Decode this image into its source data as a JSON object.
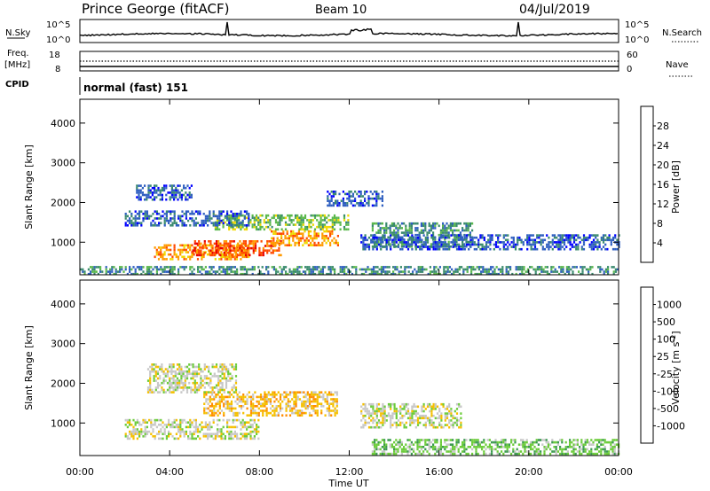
{
  "header": {
    "station": "Prince George (fitACF)",
    "beam": "Beam 10",
    "date": "04/Jul/2019"
  },
  "nsky_panel": {
    "left_label": "N.Sky",
    "right_label": "N.Search",
    "left_ticks": [
      "10^5",
      "10^0"
    ],
    "right_ticks": [
      "10^5",
      "10^0"
    ]
  },
  "freq_panel": {
    "left_label": "Freq.",
    "left_unit": "[MHz]",
    "right_label": "Nave",
    "left_ticks": [
      "18",
      "8"
    ],
    "right_ticks": [
      "60",
      "0"
    ]
  },
  "cpid": {
    "label": "CPID",
    "value": "normal (fast) 151"
  },
  "axes": {
    "ylabel": "Slant Range [km]",
    "xlabel": "Time UT",
    "y_ticks": [
      "1000",
      "2000",
      "3000",
      "4000"
    ],
    "x_ticks": [
      "00:00",
      "04:00",
      "08:00",
      "12:00",
      "16:00",
      "20:00",
      "00:00"
    ]
  },
  "chart_data": [
    {
      "type": "heatmap",
      "title": "",
      "xlabel": "",
      "ylabel": "Slant Range [km]",
      "xlim": [
        0,
        24
      ],
      "ylim": [
        180,
        4600
      ],
      "x_units": "hours UT",
      "colorbar": {
        "label": "Power [dB]",
        "ticks": [
          "4",
          "8",
          "12",
          "16",
          "20",
          "24",
          "28"
        ],
        "colors": [
          "#0000ff",
          "#2f5fc0",
          "#3a8a6e",
          "#5bb84c",
          "#f0d800",
          "#ff9a00",
          "#ff4a00",
          "#e80000"
        ]
      },
      "regions": [
        {
          "t": [
            3.3,
            7.5
          ],
          "r": [
            600,
            950
          ],
          "level": 5
        },
        {
          "t": [
            5.0,
            9.0
          ],
          "r": [
            700,
            1050
          ],
          "level": 6
        },
        {
          "t": [
            8.5,
            11.5
          ],
          "r": [
            900,
            1300
          ],
          "level": 5
        },
        {
          "t": [
            6.0,
            12.0
          ],
          "r": [
            1300,
            1700
          ],
          "level": 3
        },
        {
          "t": [
            2.0,
            7.5
          ],
          "r": [
            1400,
            1800
          ],
          "level": 1
        },
        {
          "t": [
            2.5,
            5.0
          ],
          "r": [
            2100,
            2450
          ],
          "level": 1
        },
        {
          "t": [
            11.0,
            13.5
          ],
          "r": [
            1950,
            2300
          ],
          "level": 1
        },
        {
          "t": [
            13.0,
            17.5
          ],
          "r": [
            900,
            1500
          ],
          "level": 2
        },
        {
          "t": [
            12.5,
            24.0
          ],
          "r": [
            800,
            1200
          ],
          "level": 1
        },
        {
          "t": [
            0.0,
            24.0
          ],
          "r": [
            180,
            400
          ],
          "level": 2
        }
      ]
    },
    {
      "type": "heatmap",
      "title": "",
      "xlabel": "Time UT",
      "ylabel": "Slant Range [km]",
      "xlim": [
        0,
        24
      ],
      "ylim": [
        180,
        4600
      ],
      "x_units": "hours UT",
      "colorbar": {
        "label": "Velocity [m s-1]",
        "label_parts": [
          "Velocity [m s",
          "-1",
          "]"
        ],
        "ticks": [
          "1000",
          "500",
          "100",
          "25",
          "-25",
          "-100",
          "-500",
          "-1000"
        ],
        "colors": [
          "#1a2fbf",
          "#2a5fb8",
          "#3c9a50",
          "#6ccc3a",
          "#c8c8c8",
          "#f5c000",
          "#ff8c00",
          "#ff3a00",
          "#e00000"
        ]
      },
      "regions": [
        {
          "t": [
            5.5,
            11.5
          ],
          "r": [
            1200,
            1800
          ],
          "level": "-100"
        },
        {
          "t": [
            2.0,
            8.0
          ],
          "r": [
            600,
            1100
          ],
          "level": "-25"
        },
        {
          "t": [
            3.0,
            7.0
          ],
          "r": [
            1800,
            2500
          ],
          "level": "25"
        },
        {
          "t": [
            13.0,
            24.0
          ],
          "r": [
            200,
            600
          ],
          "level": "100"
        },
        {
          "t": [
            12.5,
            17.0
          ],
          "r": [
            900,
            1500
          ],
          "level": "25"
        }
      ]
    }
  ]
}
